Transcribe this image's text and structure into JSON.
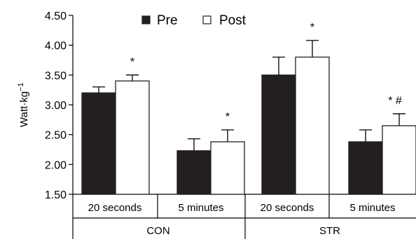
{
  "chart_data": {
    "type": "bar",
    "ylabel": "Watt·kg",
    "ylabel_superscript": "−1",
    "ylim": [
      1.5,
      4.5
    ],
    "yticks": [
      "1.50",
      "2.00",
      "2.50",
      "3.00",
      "3.50",
      "4.00",
      "4.50"
    ],
    "yticks_values": [
      1.5,
      2.0,
      2.5,
      3.0,
      3.5,
      4.0,
      4.5
    ],
    "groups": [
      {
        "label": "CON",
        "categories": [
          "20 seconds",
          "5 minutes"
        ]
      },
      {
        "label": "STR",
        "categories": [
          "20 seconds",
          "5 minutes"
        ]
      }
    ],
    "categories": [
      "20 seconds",
      "5 minutes",
      "20 seconds",
      "5 minutes"
    ],
    "series": [
      {
        "name": "Pre",
        "color": "#231f20",
        "values": [
          3.2,
          2.23,
          3.5,
          2.38
        ],
        "errors": [
          0.1,
          0.2,
          0.3,
          0.2
        ]
      },
      {
        "name": "Post",
        "color": "#ffffff",
        "values": [
          3.4,
          2.38,
          3.8,
          2.65
        ],
        "errors": [
          0.1,
          0.2,
          0.28,
          0.2
        ]
      }
    ],
    "annotations": [
      "*",
      "*",
      "*",
      "* #"
    ],
    "legend_position": "top-center",
    "grid": false
  }
}
